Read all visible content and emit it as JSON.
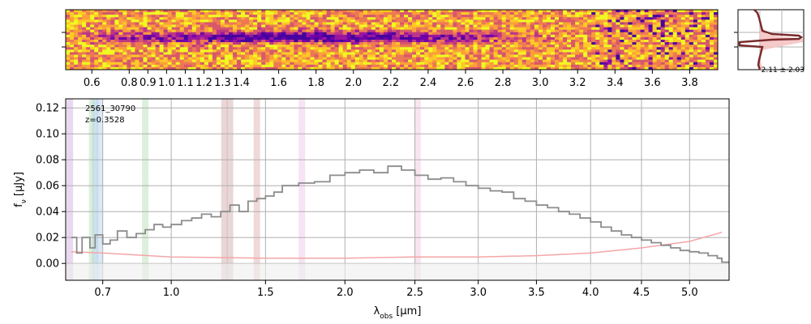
{
  "chart_data": [
    {
      "type": "heatmap",
      "name": "2D spectrum",
      "x_ticks": [
        0.6,
        0.8,
        0.9,
        1.0,
        1.1,
        1.2,
        1.3,
        1.4,
        1.6,
        1.8,
        2.0,
        2.2,
        2.4,
        2.6,
        2.8,
        3.0,
        3.2,
        3.4,
        3.6,
        3.8
      ],
      "x_tick_labels": [
        "0.6",
        "0.8",
        "0.9",
        "1.0",
        "1.1",
        "1.2",
        "1.3",
        "1.4",
        "1.6",
        "1.8",
        "2.0",
        "2.2",
        "2.4",
        "2.6",
        "2.8",
        "3.0",
        "3.2",
        "3.4",
        "3.6",
        "3.8"
      ],
      "xlim": [
        0.46,
        3.95
      ],
      "colormap": "plasma_r"
    },
    {
      "type": "line",
      "name": "cross-dispersion profile",
      "annotation": "2.11 ± 2.03"
    },
    {
      "type": "line",
      "name": "1D spectrum",
      "title": "",
      "label_id": "2561_30790",
      "label_z": "z=0.3528",
      "xlabel_parts": [
        "λ",
        "obs",
        " [μm]"
      ],
      "ylabel_parts": [
        "f",
        "ν",
        " [μJy]"
      ],
      "x_axis_scale": "sqrt",
      "xlim": [
        0.56,
        5.43
      ],
      "ylim": [
        -0.013,
        0.127
      ],
      "x_ticks": [
        0.7,
        1.0,
        1.5,
        2.0,
        2.5,
        3.0,
        3.5,
        4.0,
        4.5,
        5.0
      ],
      "x_tick_labels": [
        "0.7",
        "1.0",
        "1.5",
        "2.0",
        "2.5",
        "3.0",
        "3.5",
        "4.0",
        "4.5",
        "5.0"
      ],
      "y_ticks": [
        0.0,
        0.02,
        0.04,
        0.06,
        0.08,
        0.1,
        0.12
      ],
      "y_tick_labels": [
        "0.00",
        "0.02",
        "0.04",
        "0.06",
        "0.08",
        "0.10",
        "0.12"
      ],
      "grid": true,
      "series": [
        {
          "name": "flux",
          "color": "#8c8c8c",
          "x": [
            0.58,
            0.6,
            0.62,
            0.65,
            0.67,
            0.7,
            0.73,
            0.76,
            0.8,
            0.84,
            0.88,
            0.92,
            0.96,
            1.0,
            1.05,
            1.1,
            1.15,
            1.2,
            1.25,
            1.3,
            1.35,
            1.4,
            1.45,
            1.5,
            1.55,
            1.6,
            1.7,
            1.8,
            1.9,
            2.0,
            2.1,
            2.2,
            2.3,
            2.4,
            2.5,
            2.6,
            2.7,
            2.8,
            2.9,
            3.0,
            3.1,
            3.2,
            3.3,
            3.4,
            3.5,
            3.6,
            3.7,
            3.8,
            3.9,
            4.0,
            4.1,
            4.2,
            4.3,
            4.4,
            4.5,
            4.6,
            4.7,
            4.8,
            4.9,
            5.0,
            5.1,
            5.2,
            5.3,
            5.35
          ],
          "y": [
            0.02,
            0.008,
            0.02,
            0.012,
            0.022,
            0.015,
            0.018,
            0.025,
            0.02,
            0.023,
            0.026,
            0.03,
            0.028,
            0.03,
            0.033,
            0.035,
            0.038,
            0.036,
            0.04,
            0.045,
            0.04,
            0.048,
            0.05,
            0.052,
            0.055,
            0.06,
            0.062,
            0.063,
            0.068,
            0.07,
            0.072,
            0.07,
            0.075,
            0.072,
            0.068,
            0.065,
            0.066,
            0.063,
            0.06,
            0.058,
            0.056,
            0.055,
            0.05,
            0.048,
            0.045,
            0.043,
            0.04,
            0.038,
            0.035,
            0.032,
            0.028,
            0.025,
            0.022,
            0.02,
            0.018,
            0.016,
            0.014,
            0.012,
            0.01,
            0.009,
            0.008,
            0.006,
            0.004,
            0.001
          ]
        },
        {
          "name": "uncertainty",
          "color": "#f4a6a6",
          "x": [
            0.58,
            0.7,
            1.0,
            1.5,
            2.0,
            2.5,
            3.0,
            3.5,
            4.0,
            4.5,
            5.0,
            5.35
          ],
          "y": [
            0.009,
            0.008,
            0.005,
            0.004,
            0.004,
            0.005,
            0.005,
            0.006,
            0.008,
            0.012,
            0.017,
            0.024
          ]
        }
      ],
      "emission_bands": [
        {
          "x": 0.575,
          "color": "#c79fd9"
        },
        {
          "x": 0.658,
          "color": "#a7d9a7"
        },
        {
          "x": 0.67,
          "color": "#a7c8e6"
        },
        {
          "x": 0.686,
          "color": "#a7c8e6"
        },
        {
          "x": 0.88,
          "color": "#a7d9a7"
        },
        {
          "x": 1.27,
          "color": "#c99a9a"
        },
        {
          "x": 1.3,
          "color": "#c99a9a"
        },
        {
          "x": 1.45,
          "color": "#d9a0a0"
        },
        {
          "x": 1.72,
          "color": "#e8b8e0"
        },
        {
          "x": 2.52,
          "color": "#f0bcd8"
        }
      ]
    }
  ]
}
